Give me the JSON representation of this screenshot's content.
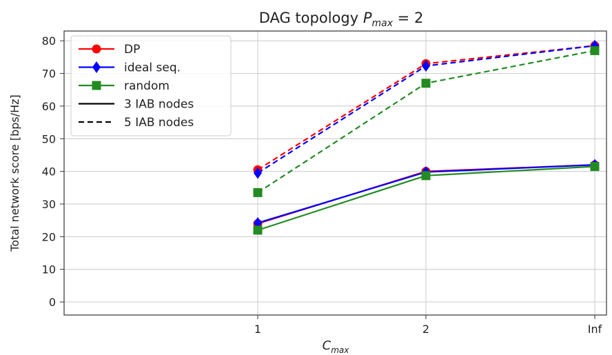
{
  "chart_data": {
    "type": "line",
    "title_prefix": "DAG topology ",
    "title_math_base": "P",
    "title_math_sub": "max",
    "title_suffix": " = 2",
    "xlabel_base": "C",
    "xlabel_sub": "max",
    "ylabel": "Total network score [bps/Hz]",
    "categories": [
      "1",
      "2",
      "Inf"
    ],
    "ylim": [
      -4,
      83
    ],
    "yticks": [
      0,
      10,
      20,
      30,
      40,
      50,
      60,
      70,
      80
    ],
    "grid": true,
    "legend_position": "top-left",
    "series": [
      {
        "name": "DP",
        "color": "#ff0000",
        "marker": "circle",
        "dash": "dashed",
        "values": [
          40.5,
          73.0,
          78.5
        ]
      },
      {
        "name": "ideal seq.",
        "color": "#0000ff",
        "marker": "diamond",
        "dash": "dashed",
        "values": [
          39.5,
          72.3,
          78.5
        ]
      },
      {
        "name": "random",
        "color": "#228b22",
        "marker": "square",
        "dash": "dashed",
        "values": [
          33.5,
          67.0,
          77.0
        ]
      },
      {
        "name": "",
        "color": "#ff0000",
        "marker": "circle",
        "dash": "solid",
        "values": [
          24.0,
          40.0,
          42.0
        ]
      },
      {
        "name": "",
        "color": "#0000ff",
        "marker": "diamond",
        "dash": "solid",
        "values": [
          24.2,
          39.8,
          42.0
        ]
      },
      {
        "name": "",
        "color": "#228b22",
        "marker": "square",
        "dash": "solid",
        "values": [
          22.0,
          38.7,
          41.5
        ]
      }
    ],
    "legend": [
      {
        "label": "DP",
        "color": "#ff0000",
        "marker": "circle",
        "dash": "solid"
      },
      {
        "label": "ideal seq.",
        "color": "#0000ff",
        "marker": "diamond",
        "dash": "solid"
      },
      {
        "label": "random",
        "color": "#228b22",
        "marker": "square",
        "dash": "solid"
      },
      {
        "label": "3 IAB nodes",
        "color": "#000000",
        "marker": "none",
        "dash": "solid"
      },
      {
        "label": "5 IAB nodes",
        "color": "#000000",
        "marker": "none",
        "dash": "dashed"
      }
    ]
  }
}
